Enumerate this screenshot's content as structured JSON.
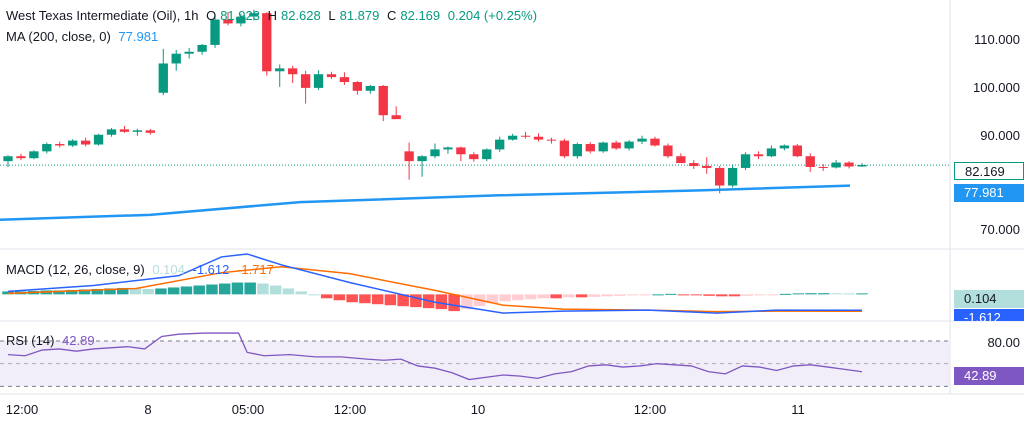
{
  "header": {
    "symbol": "West Texas Intermediate (Oil), 1h",
    "o_label": "O",
    "o": "81.923",
    "h_label": "H",
    "h": "82.628",
    "l_label": "L",
    "l": "81.879",
    "c_label": "C",
    "c": "82.169",
    "change": "0.204 (+0.25%)",
    "ma_label": "MA (200, close, 0)",
    "ma_value": "77.981"
  },
  "macd_header": {
    "label": "MACD (12, 26, close, 9)",
    "hist": "0.104",
    "macd": "-1.612",
    "signal": "-1.717"
  },
  "rsi_header": {
    "label": "RSI (14)",
    "value": "42.89"
  },
  "price_axis": [
    "110.000",
    "100.000",
    "90.000",
    "70.000"
  ],
  "price_tags": {
    "last": "82.169",
    "ma": "77.981"
  },
  "macd_tags": {
    "hist": "0.104",
    "macd": "-1.612"
  },
  "rsi_axis": [
    "80.00"
  ],
  "rsi_tag": "42.89",
  "time_axis": [
    "12:00",
    "8",
    "05:00",
    "12:00",
    "10",
    "12:00",
    "11"
  ],
  "colors": {
    "up": "#089981",
    "down": "#f23645",
    "ma": "#2962ff",
    "macd": "#2962ff",
    "signal": "#ff6d00",
    "rsi": "#7e57c2",
    "rsi_band": "#ede7f6",
    "hist_pos_strong": "#26a69a",
    "hist_pos_weak": "#b2dfdb",
    "hist_neg_strong": "#ff5252",
    "hist_neg_weak": "#ffcdd2"
  },
  "chart_data": {
    "type": "candlestick",
    "panes": [
      "price",
      "macd",
      "rsi"
    ],
    "price": {
      "ylim": [
        65,
        116
      ],
      "candles": [
        [
          83.0,
          84.2,
          81.8,
          84.0
        ],
        [
          84.0,
          84.5,
          83.2,
          83.6
        ],
        [
          83.6,
          85.2,
          83.4,
          85.0
        ],
        [
          85.0,
          86.8,
          84.6,
          86.5
        ],
        [
          86.5,
          87.0,
          85.8,
          86.2
        ],
        [
          86.2,
          87.5,
          85.9,
          87.2
        ],
        [
          87.2,
          87.8,
          86.0,
          86.4
        ],
        [
          86.4,
          88.6,
          86.2,
          88.4
        ],
        [
          88.4,
          89.8,
          88.0,
          89.5
        ],
        [
          89.5,
          90.2,
          88.8,
          89.0
        ],
        [
          89.0,
          89.6,
          88.2,
          89.3
        ],
        [
          89.3,
          89.6,
          88.4,
          88.8
        ],
        [
          97.0,
          106.0,
          96.5,
          103.0
        ],
        [
          103.0,
          105.8,
          101.5,
          105.0
        ],
        [
          105.0,
          106.2,
          104.0,
          105.4
        ],
        [
          105.4,
          107.0,
          104.8,
          106.8
        ],
        [
          106.8,
          113.0,
          106.2,
          112.0
        ],
        [
          112.0,
          113.5,
          110.8,
          111.2
        ],
        [
          111.2,
          113.2,
          110.6,
          112.6
        ],
        [
          112.6,
          114.0,
          111.8,
          113.3
        ],
        [
          113.3,
          113.5,
          100.5,
          101.4
        ],
        [
          101.4,
          102.8,
          98.2,
          102.0
        ],
        [
          102.0,
          102.5,
          99.0,
          100.8
        ],
        [
          100.8,
          101.5,
          94.8,
          98.0
        ],
        [
          98.0,
          101.6,
          97.6,
          100.8
        ],
        [
          100.8,
          101.3,
          99.8,
          100.2
        ],
        [
          100.2,
          101.2,
          98.6,
          99.2
        ],
        [
          99.2,
          99.4,
          96.6,
          97.4
        ],
        [
          97.4,
          98.6,
          96.8,
          98.4
        ],
        [
          98.4,
          98.6,
          91.2,
          92.4
        ],
        [
          92.4,
          94.2,
          91.6,
          91.6
        ],
        [
          85.0,
          86.8,
          79.2,
          83.0
        ],
        [
          83.0,
          84.2,
          79.8,
          84.0
        ],
        [
          84.0,
          86.6,
          83.6,
          85.4
        ],
        [
          85.4,
          86.0,
          84.5,
          85.8
        ],
        [
          85.8,
          86.0,
          83.0,
          84.4
        ],
        [
          84.4,
          84.8,
          82.9,
          83.4
        ],
        [
          83.4,
          85.6,
          83.0,
          85.4
        ],
        [
          85.4,
          88.0,
          84.9,
          87.4
        ],
        [
          87.4,
          88.6,
          87.2,
          88.2
        ],
        [
          88.2,
          89.0,
          87.6,
          88.0
        ],
        [
          88.0,
          88.7,
          87.0,
          87.4
        ],
        [
          87.4,
          87.8,
          86.6,
          87.2
        ],
        [
          87.2,
          87.6,
          83.6,
          84.0
        ],
        [
          84.0,
          86.8,
          83.5,
          86.5
        ],
        [
          86.5,
          86.9,
          84.6,
          85.0
        ],
        [
          85.0,
          87.0,
          84.7,
          86.8
        ],
        [
          86.8,
          87.2,
          85.3,
          85.6
        ],
        [
          85.6,
          87.3,
          85.2,
          87.0
        ],
        [
          87.0,
          88.2,
          86.5,
          87.6
        ],
        [
          87.6,
          88.0,
          86.0,
          86.2
        ],
        [
          86.2,
          86.6,
          83.6,
          84.0
        ],
        [
          84.0,
          84.6,
          82.6,
          82.6
        ],
        [
          82.6,
          83.2,
          81.4,
          82.0
        ],
        [
          82.0,
          83.8,
          80.4,
          81.6
        ],
        [
          81.6,
          82.0,
          76.4,
          78.0
        ],
        [
          78.0,
          82.3,
          77.6,
          81.6
        ],
        [
          81.6,
          84.8,
          81.2,
          84.4
        ],
        [
          84.4,
          85.0,
          83.4,
          84.0
        ],
        [
          84.0,
          86.2,
          83.8,
          85.6
        ],
        [
          85.6,
          86.4,
          85.2,
          86.2
        ],
        [
          86.2,
          86.5,
          83.8,
          84.0
        ],
        [
          84.0,
          84.6,
          80.8,
          81.8
        ],
        [
          81.8,
          82.4,
          81.0,
          81.7
        ],
        [
          81.7,
          83.2,
          81.5,
          82.7
        ],
        [
          82.7,
          83.0,
          81.5,
          81.9
        ],
        [
          81.9,
          82.6,
          81.8,
          82.2
        ]
      ],
      "ma200": [
        [
          0,
          71.0
        ],
        [
          0.15,
          72.0
        ],
        [
          0.3,
          74.6
        ],
        [
          0.5,
          76.0
        ],
        [
          0.7,
          77.0
        ],
        [
          0.85,
          77.981
        ]
      ],
      "last_line": 82.169
    },
    "macd": {
      "ylim": [
        -2.4,
        4.3
      ],
      "hist": [
        0.3,
        0.3,
        0.35,
        0.4,
        0.4,
        0.45,
        0.5,
        0.55,
        0.6,
        0.65,
        0.6,
        0.55,
        0.6,
        0.7,
        0.8,
        0.9,
        1.0,
        1.1,
        1.2,
        1.2,
        1.1,
        0.9,
        0.6,
        0.3,
        0.0,
        -0.4,
        -0.6,
        -0.8,
        -0.9,
        -1.0,
        -1.1,
        -1.2,
        -1.3,
        -1.4,
        -1.5,
        -1.7,
        -1.5,
        -1.2,
        -0.9,
        -0.7,
        -0.6,
        -0.5,
        -0.4,
        -0.4,
        -0.3,
        -0.3,
        -0.25,
        -0.2,
        -0.15,
        -0.1,
        -0.05,
        0.0,
        0.05,
        -0.05,
        -0.1,
        -0.15,
        -0.2,
        -0.2,
        -0.15,
        -0.1,
        -0.05,
        0.05,
        0.1,
        0.12,
        0.12,
        0.104,
        0.1,
        0.1
      ],
      "macd_line": [
        [
          0,
          0.3
        ],
        [
          0.1,
          0.9
        ],
        [
          0.2,
          1.9
        ],
        [
          0.25,
          3.8
        ],
        [
          0.28,
          4.1
        ],
        [
          0.32,
          3.0
        ],
        [
          0.4,
          1.2
        ],
        [
          0.5,
          -0.8
        ],
        [
          0.58,
          -1.9
        ],
        [
          0.65,
          -1.7
        ],
        [
          0.75,
          -1.6
        ],
        [
          0.83,
          -1.9
        ],
        [
          0.9,
          -1.6
        ],
        [
          1.0,
          -1.612
        ]
      ],
      "signal_line": [
        [
          0,
          0.1
        ],
        [
          0.15,
          0.6
        ],
        [
          0.25,
          2.2
        ],
        [
          0.32,
          2.8
        ],
        [
          0.4,
          2.1
        ],
        [
          0.5,
          0.4
        ],
        [
          0.58,
          -1.1
        ],
        [
          0.65,
          -1.5
        ],
        [
          0.75,
          -1.6
        ],
        [
          0.83,
          -1.75
        ],
        [
          0.9,
          -1.7
        ],
        [
          1.0,
          -1.717
        ]
      ]
    },
    "rsi": {
      "ylim": [
        25,
        85
      ],
      "bands": [
        70,
        30
      ],
      "values": [
        [
          0,
          58
        ],
        [
          0.02,
          57
        ],
        [
          0.04,
          62
        ],
        [
          0.06,
          63
        ],
        [
          0.08,
          61
        ],
        [
          0.1,
          63
        ],
        [
          0.12,
          64
        ],
        [
          0.14,
          65
        ],
        [
          0.16,
          63
        ],
        [
          0.18,
          74
        ],
        [
          0.2,
          76
        ],
        [
          0.23,
          77
        ],
        [
          0.27,
          77
        ],
        [
          0.28,
          60
        ],
        [
          0.3,
          57
        ],
        [
          0.33,
          58
        ],
        [
          0.36,
          56
        ],
        [
          0.39,
          56
        ],
        [
          0.42,
          54
        ],
        [
          0.44,
          53
        ],
        [
          0.46,
          54
        ],
        [
          0.48,
          48
        ],
        [
          0.5,
          46
        ],
        [
          0.52,
          42
        ],
        [
          0.54,
          36
        ],
        [
          0.56,
          38
        ],
        [
          0.58,
          40
        ],
        [
          0.6,
          39
        ],
        [
          0.62,
          37
        ],
        [
          0.64,
          41
        ],
        [
          0.66,
          43
        ],
        [
          0.68,
          48
        ],
        [
          0.7,
          49
        ],
        [
          0.72,
          47
        ],
        [
          0.74,
          48
        ],
        [
          0.76,
          50
        ],
        [
          0.78,
          49
        ],
        [
          0.8,
          48
        ],
        [
          0.82,
          43
        ],
        [
          0.84,
          41
        ],
        [
          0.86,
          48
        ],
        [
          0.88,
          47
        ],
        [
          0.9,
          44
        ],
        [
          0.92,
          48
        ],
        [
          0.94,
          49
        ],
        [
          0.96,
          47
        ],
        [
          0.98,
          45
        ],
        [
          1.0,
          42.89
        ]
      ]
    },
    "x_ticks": [
      "12:00",
      "8",
      "05:00",
      "12:00",
      "10",
      "12:00",
      "11"
    ]
  }
}
